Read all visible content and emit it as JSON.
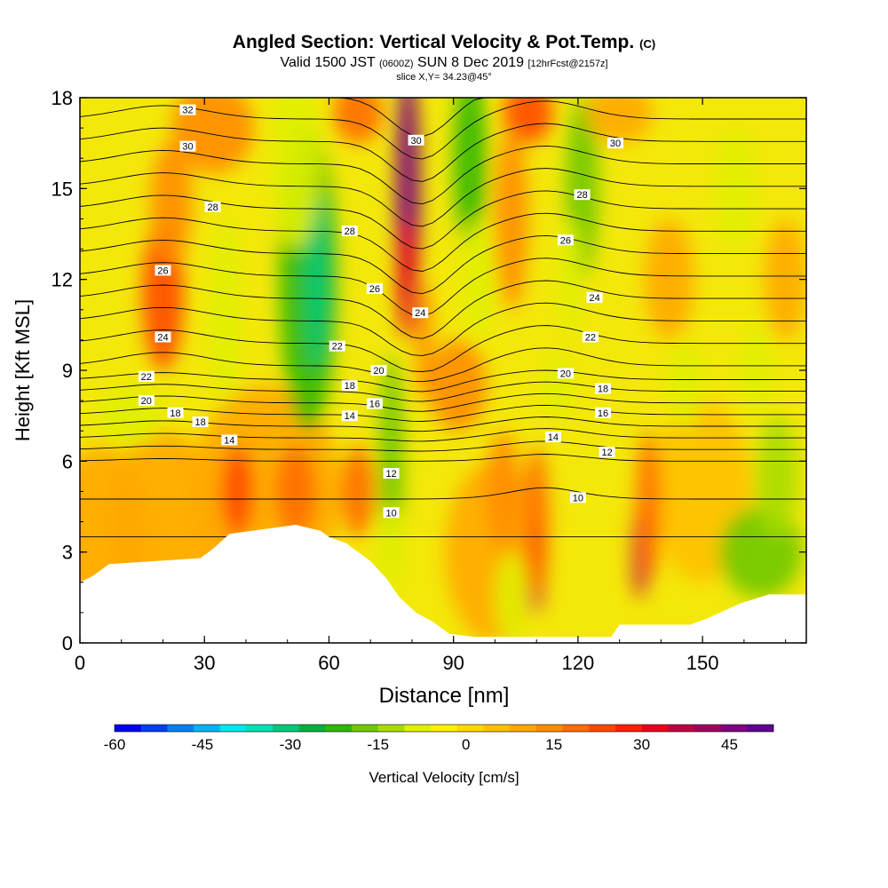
{
  "header": {
    "title": "Angled Section: Vertical Velocity & Pot.Temp.",
    "title_unit": "(C)",
    "valid_prefix": "Valid 1500 JST",
    "valid_zulu": "(0600Z)",
    "valid_date": "SUN 8 Dec 2019",
    "forecast": "[12hrFcst@2157z]",
    "slice": "slice X,Y= 34.23@45°"
  },
  "chart_data": {
    "type": "heatmap",
    "xlabel": "Distance [nm]",
    "ylabel": "Height [Kft MSL]",
    "xlim": [
      0,
      175
    ],
    "ylim": [
      0,
      18
    ],
    "xticks": [
      0,
      30,
      60,
      90,
      120,
      150
    ],
    "yticks": [
      0,
      3,
      6,
      9,
      12,
      15,
      18
    ],
    "colorbar": {
      "label": "Vertical Velocity [cm/s]",
      "range": [
        -60,
        52.5
      ],
      "tick_values": [
        -60,
        -45,
        -30,
        -15,
        0,
        15,
        30,
        45
      ],
      "colors": [
        "#0000f0",
        "#0040f0",
        "#0080f0",
        "#00b4f0",
        "#00e8f0",
        "#00e0b0",
        "#00c878",
        "#00b040",
        "#30b800",
        "#70c800",
        "#a8dc00",
        "#e0f000",
        "#fff000",
        "#ffd800",
        "#ffc000",
        "#ffa800",
        "#ff8c00",
        "#ff6c00",
        "#ff4800",
        "#ff2000",
        "#e80020",
        "#c00040",
        "#a00060",
        "#800080",
        "#600090"
      ]
    },
    "potential_temperature_labels": [
      {
        "x": 26,
        "y": 17.6,
        "v": "32"
      },
      {
        "x": 26,
        "y": 16.4,
        "v": "30"
      },
      {
        "x": 32,
        "y": 14.4,
        "v": "28"
      },
      {
        "x": 20,
        "y": 12.3,
        "v": "26"
      },
      {
        "x": 20,
        "y": 10.1,
        "v": "24"
      },
      {
        "x": 16,
        "y": 8.8,
        "v": "22"
      },
      {
        "x": 16,
        "y": 8.0,
        "v": "20"
      },
      {
        "x": 23,
        "y": 7.6,
        "v": "18"
      },
      {
        "x": 29,
        "y": 7.3,
        "v": "18"
      },
      {
        "x": 36,
        "y": 6.7,
        "v": "14"
      },
      {
        "x": 81,
        "y": 16.6,
        "v": "30"
      },
      {
        "x": 129,
        "y": 16.5,
        "v": "30"
      },
      {
        "x": 121,
        "y": 14.8,
        "v": "28"
      },
      {
        "x": 65,
        "y": 13.6,
        "v": "28"
      },
      {
        "x": 117,
        "y": 13.3,
        "v": "26"
      },
      {
        "x": 71,
        "y": 11.7,
        "v": "26"
      },
      {
        "x": 82,
        "y": 10.9,
        "v": "24"
      },
      {
        "x": 124,
        "y": 11.4,
        "v": "24"
      },
      {
        "x": 123,
        "y": 10.1,
        "v": "22"
      },
      {
        "x": 62,
        "y": 9.8,
        "v": "22"
      },
      {
        "x": 72,
        "y": 9.0,
        "v": "20"
      },
      {
        "x": 117,
        "y": 8.9,
        "v": "20"
      },
      {
        "x": 65,
        "y": 8.5,
        "v": "18"
      },
      {
        "x": 126,
        "y": 8.4,
        "v": "18"
      },
      {
        "x": 71,
        "y": 7.9,
        "v": "16"
      },
      {
        "x": 126,
        "y": 7.6,
        "v": "16"
      },
      {
        "x": 65,
        "y": 7.5,
        "v": "14"
      },
      {
        "x": 114,
        "y": 6.8,
        "v": "14"
      },
      {
        "x": 127,
        "y": 6.3,
        "v": "12"
      },
      {
        "x": 75,
        "y": 5.6,
        "v": "12"
      },
      {
        "x": 120,
        "y": 4.8,
        "v": "10"
      },
      {
        "x": 75,
        "y": 4.3,
        "v": "10"
      }
    ],
    "terrain_heights": [
      [
        0,
        2.0
      ],
      [
        3,
        2.2
      ],
      [
        7,
        2.6
      ],
      [
        29,
        2.8
      ],
      [
        32,
        3.1
      ],
      [
        36,
        3.6
      ],
      [
        52,
        3.9
      ],
      [
        58,
        3.7
      ],
      [
        60,
        3.5
      ],
      [
        64,
        3.3
      ],
      [
        70,
        2.7
      ],
      [
        74,
        2.1
      ],
      [
        77,
        1.5
      ],
      [
        81,
        1.0
      ],
      [
        85,
        0.7
      ],
      [
        89,
        0.3
      ],
      [
        95,
        0.2
      ],
      [
        128,
        0.2
      ],
      [
        130,
        0.6
      ],
      [
        147,
        0.6
      ],
      [
        151,
        0.8
      ],
      [
        159,
        1.3
      ],
      [
        166,
        1.6
      ],
      [
        175,
        1.6
      ]
    ]
  }
}
